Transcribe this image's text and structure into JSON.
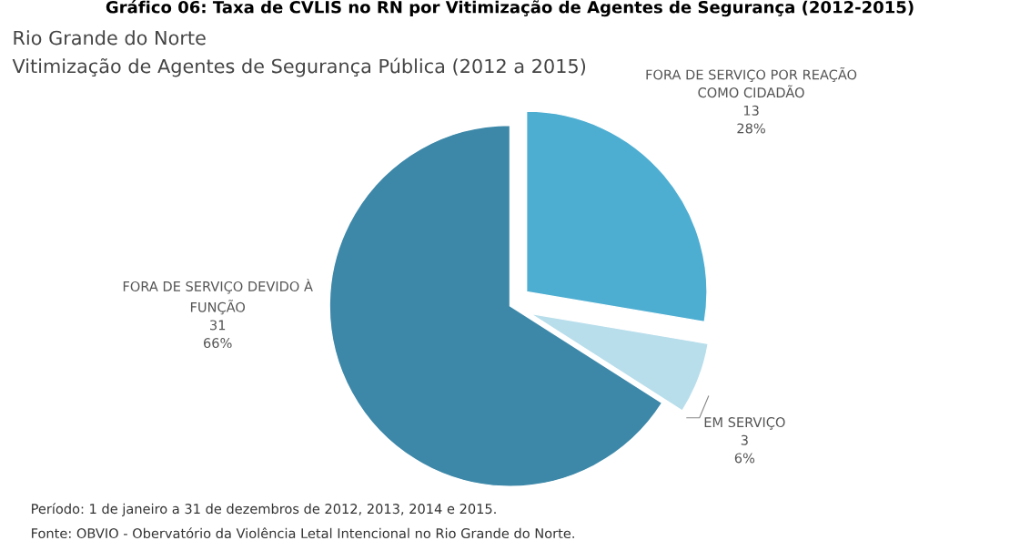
{
  "chart_data": {
    "type": "pie",
    "title": "Gráfico 06: Taxa de CVLIS no RN por Vitimização de Agentes de Segurança (2012-2015)",
    "subtitle": "Rio Grande do Norte\nVitimização de Agentes de Segurança Pública (2012 a 2015)",
    "categories": [
      "FORA DE SERVIÇO POR REAÇÃO\nCOMO CIDADÃO",
      "EM SERVIÇO",
      "FORA DE SERVIÇO DEVIDO À\nFUNÇÃO"
    ],
    "values": [
      13,
      3,
      31
    ],
    "colors": [
      "#4eaed2",
      "#b8deec",
      "#3d88a9"
    ],
    "value_labels": [
      "13\n28%",
      "3\n6%",
      "31\n66%"
    ],
    "annotations": [
      "Período: 1 de janeiro a 31 de dezembros de 2012, 2013, 2014 e 2015.",
      "Fonte: OBVIO - Obervatório da Violência Letal Intencional no Rio Grande do Norte."
    ],
    "legend": false
  }
}
